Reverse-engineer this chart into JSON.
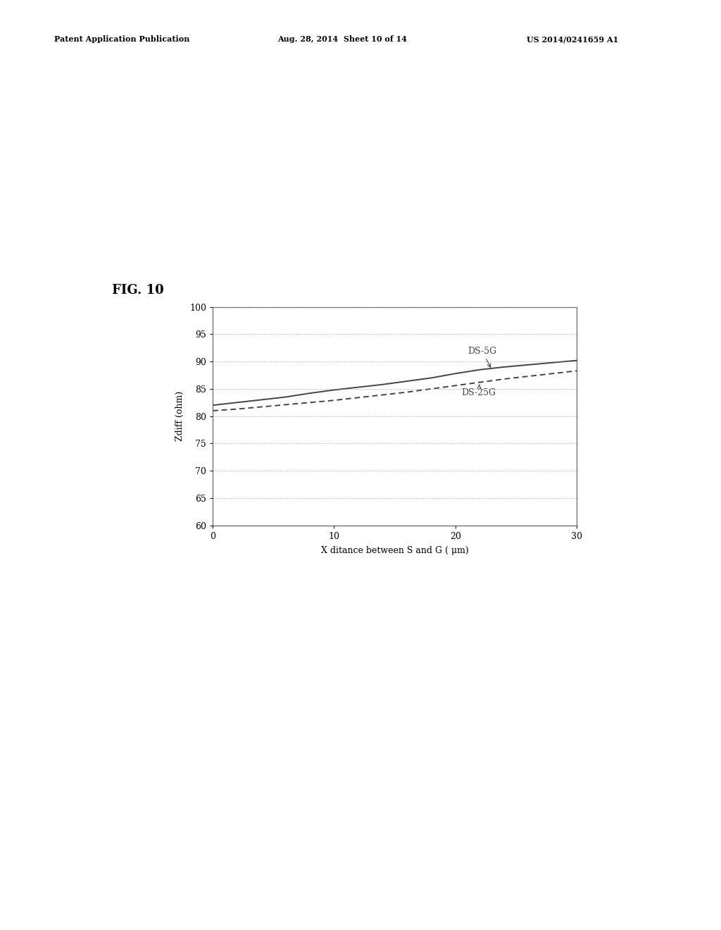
{
  "fig_label": "FIG. 10",
  "header_left": "Patent Application Publication",
  "header_center": "Aug. 28, 2014  Sheet 10 of 14",
  "header_right": "US 2014/0241659 A1",
  "xlabel": "X ditance between S and G ( μm)",
  "ylabel": "Zdiff (ohm)",
  "xlim": [
    0,
    30
  ],
  "ylim": [
    60,
    100
  ],
  "xticks": [
    0,
    10,
    20,
    30
  ],
  "yticks": [
    60,
    65,
    70,
    75,
    80,
    85,
    90,
    95,
    100
  ],
  "ds5g_label": "DS-5G",
  "ds25g_label": "DS-25G",
  "ds5g_x": [
    0,
    2,
    4,
    6,
    8,
    10,
    12,
    14,
    16,
    18,
    20,
    22,
    24,
    26,
    28,
    30
  ],
  "ds5g_y": [
    82.0,
    82.5,
    83.0,
    83.5,
    84.2,
    84.8,
    85.3,
    85.8,
    86.4,
    87.0,
    87.8,
    88.5,
    89.0,
    89.4,
    89.8,
    90.2
  ],
  "ds25g_x": [
    0,
    2,
    4,
    6,
    8,
    10,
    12,
    14,
    16,
    18,
    20,
    22,
    24,
    26,
    28,
    30
  ],
  "ds25g_y": [
    81.0,
    81.3,
    81.7,
    82.1,
    82.5,
    82.9,
    83.4,
    83.9,
    84.4,
    85.0,
    85.6,
    86.2,
    86.8,
    87.3,
    87.8,
    88.3
  ],
  "line_color": "#444444",
  "background_color": "#ffffff",
  "grid_color": "#999999",
  "annotation_fontsize": 9,
  "axis_fontsize": 9,
  "label_fontsize": 9,
  "fig_label_fontsize": 13,
  "header_fontsize": 8
}
